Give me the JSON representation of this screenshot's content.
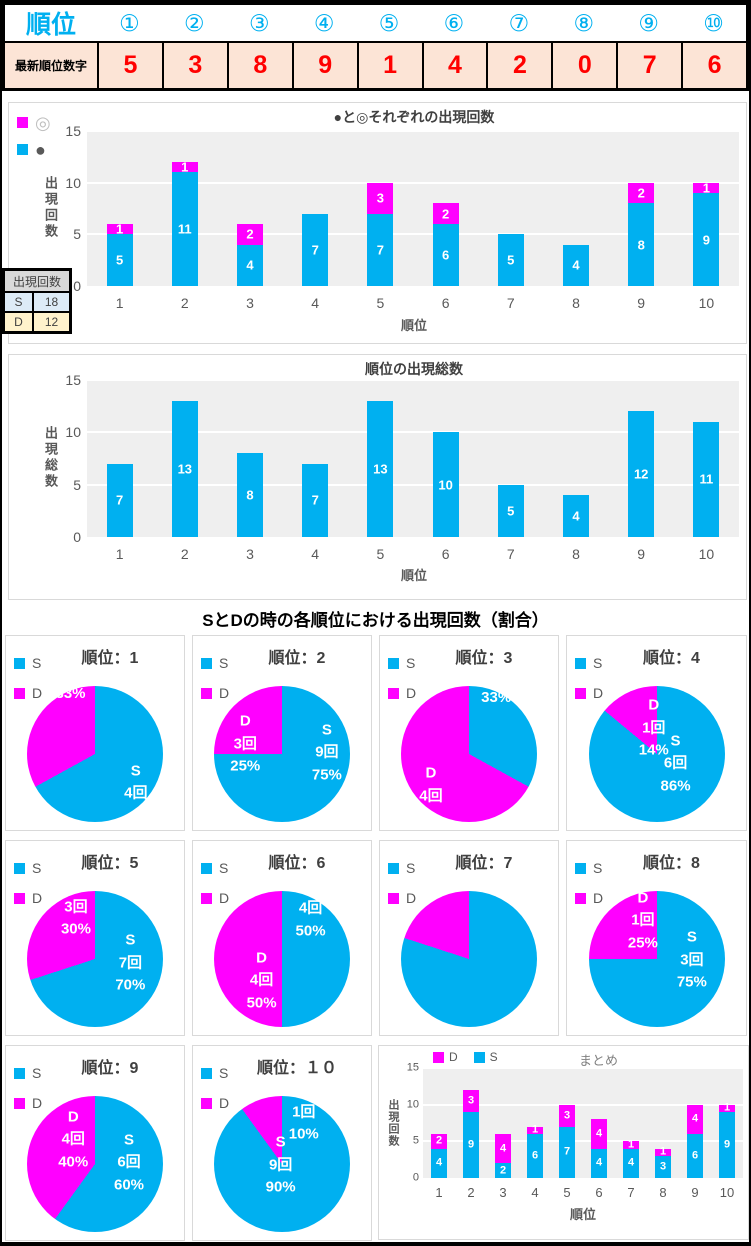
{
  "colors": {
    "accent_cyan": "#00B0F0",
    "accent_magenta": "#FF00FF",
    "value_red": "#FF0000",
    "table_bg_pink": "#FCE4D6",
    "s_row_bg": "#DDEBF7",
    "d_row_bg": "#FFF2CC",
    "header_gray": "#D9D9D9",
    "plot_bg": "#EFEFEF"
  },
  "top_table": {
    "header_label": "順位",
    "rank_symbols": [
      "①",
      "②",
      "③",
      "④",
      "⑤",
      "⑥",
      "⑦",
      "⑧",
      "⑨",
      "⑩"
    ],
    "row_label": "最新順位数字",
    "values": [
      "5",
      "3",
      "8",
      "9",
      "1",
      "4",
      "2",
      "0",
      "7",
      "6"
    ]
  },
  "counts_table": {
    "header": "出現回数",
    "rows": [
      {
        "label": "S",
        "value": "18"
      },
      {
        "label": "D",
        "value": "12"
      }
    ]
  },
  "section": {
    "title": "SとDの時の各順位における出現回数（割合）"
  },
  "chart_data": [
    {
      "type": "bar",
      "title": "●と◎それぞれの出現回数",
      "xlabel": "順位",
      "ylabel": "出現回数",
      "ylim": [
        0,
        15
      ],
      "yticks": [
        0,
        5,
        10,
        15
      ],
      "grid": true,
      "legend_position": "top-left",
      "categories": [
        "1",
        "2",
        "3",
        "4",
        "5",
        "6",
        "7",
        "8",
        "9",
        "10"
      ],
      "series": [
        {
          "name": "●",
          "color": "#00B0F0",
          "values": [
            5,
            11,
            4,
            7,
            7,
            6,
            5,
            4,
            8,
            9
          ]
        },
        {
          "name": "◎",
          "color": "#FF00FF",
          "values": [
            1,
            1,
            2,
            0,
            3,
            2,
            0,
            0,
            2,
            1
          ]
        }
      ],
      "legend": [
        {
          "label": "◎",
          "swatch": "#FF00FF"
        },
        {
          "label": "●",
          "swatch": "#00B0F0"
        }
      ]
    },
    {
      "type": "bar",
      "title": "順位の出現総数",
      "xlabel": "順位",
      "ylabel": "出現総数",
      "ylim": [
        0,
        15
      ],
      "yticks": [
        0,
        5,
        10,
        15
      ],
      "grid": true,
      "categories": [
        "1",
        "2",
        "3",
        "4",
        "5",
        "6",
        "7",
        "8",
        "9",
        "10"
      ],
      "series": [
        {
          "name": "出現総数",
          "color": "#00B0F0",
          "values": [
            7,
            13,
            8,
            7,
            13,
            10,
            5,
            4,
            12,
            11
          ]
        }
      ]
    },
    {
      "type": "pie",
      "title": "順位：1",
      "legend": [
        {
          "label": "S",
          "swatch": "#00B0F0"
        },
        {
          "label": "D",
          "swatch": "#FF00FF"
        }
      ],
      "slices": [
        {
          "name": "S",
          "color": "#00B0F0",
          "pct": 67
        },
        {
          "name": "D",
          "color": "#FF00FF",
          "pct": 33
        }
      ],
      "labels": [
        {
          "text": "33%",
          "x": 32,
          "y": 6
        },
        {
          "text": "S\n4回",
          "x": 80,
          "y": 71
        }
      ]
    },
    {
      "type": "pie",
      "title": "順位：2",
      "legend": [
        {
          "label": "S",
          "swatch": "#00B0F0"
        },
        {
          "label": "D",
          "swatch": "#FF00FF"
        }
      ],
      "slices": [
        {
          "name": "S",
          "color": "#00B0F0",
          "pct": 75
        },
        {
          "name": "D",
          "color": "#FF00FF",
          "pct": 25
        }
      ],
      "labels": [
        {
          "text": "D\n3回\n25%",
          "x": 23,
          "y": 43
        },
        {
          "text": "S\n9回\n75%",
          "x": 83,
          "y": 49
        }
      ]
    },
    {
      "type": "pie",
      "title": "順位：3",
      "legend": [
        {
          "label": "S",
          "swatch": "#00B0F0"
        },
        {
          "label": "D",
          "swatch": "#FF00FF"
        }
      ],
      "slices": [
        {
          "name": "S",
          "color": "#00B0F0",
          "pct": 33
        },
        {
          "name": "D",
          "color": "#FF00FF",
          "pct": 67
        }
      ],
      "labels": [
        {
          "text": "33%",
          "x": 70,
          "y": 9
        },
        {
          "text": "D\n4回",
          "x": 22,
          "y": 73
        }
      ]
    },
    {
      "type": "pie",
      "title": "順位：4",
      "legend": [
        {
          "label": "S",
          "swatch": "#00B0F0"
        },
        {
          "label": "D",
          "swatch": "#FF00FF"
        }
      ],
      "slices": [
        {
          "name": "S",
          "color": "#00B0F0",
          "pct": 86
        },
        {
          "name": "D",
          "color": "#FF00FF",
          "pct": 14
        }
      ],
      "labels": [
        {
          "text": "D\n1回\n14%",
          "x": 48,
          "y": 31
        },
        {
          "text": "S\n6回\n86%",
          "x": 64,
          "y": 57
        }
      ]
    },
    {
      "type": "pie",
      "title": "順位：5",
      "legend": [
        {
          "label": "S",
          "swatch": "#00B0F0"
        },
        {
          "label": "D",
          "swatch": "#FF00FF"
        }
      ],
      "slices": [
        {
          "name": "S",
          "color": "#00B0F0",
          "pct": 70
        },
        {
          "name": "D",
          "color": "#FF00FF",
          "pct": 30
        }
      ],
      "labels": [
        {
          "text": "D\n3回\n30%",
          "x": 36,
          "y": 12
        },
        {
          "text": "S\n7回\n70%",
          "x": 76,
          "y": 53
        }
      ]
    },
    {
      "type": "pie",
      "title": "順位：6",
      "legend": [
        {
          "label": "S",
          "swatch": "#00B0F0"
        },
        {
          "label": "D",
          "swatch": "#FF00FF"
        }
      ],
      "slices": [
        {
          "name": "S",
          "color": "#00B0F0",
          "pct": 50
        },
        {
          "name": "D",
          "color": "#FF00FF",
          "pct": 50
        }
      ],
      "labels": [
        {
          "text": "S\n4回\n50%",
          "x": 71,
          "y": 13
        },
        {
          "text": "D\n4回\n50%",
          "x": 35,
          "y": 66
        }
      ]
    },
    {
      "type": "pie",
      "title": "順位：7",
      "legend": [
        {
          "label": "S",
          "swatch": "#00B0F0"
        },
        {
          "label": "D",
          "swatch": "#FF00FF"
        }
      ],
      "slices": [
        {
          "name": "S",
          "color": "#00B0F0",
          "pct": 80
        },
        {
          "name": "D",
          "color": "#FF00FF",
          "pct": 20
        }
      ],
      "labels": []
    },
    {
      "type": "pie",
      "title": "順位：8",
      "legend": [
        {
          "label": "S",
          "swatch": "#00B0F0"
        },
        {
          "label": "D",
          "swatch": "#FF00FF"
        }
      ],
      "slices": [
        {
          "name": "S",
          "color": "#00B0F0",
          "pct": 75
        },
        {
          "name": "D",
          "color": "#FF00FF",
          "pct": 25
        }
      ],
      "labels": [
        {
          "text": "D\n1回\n25%",
          "x": 40,
          "y": 22
        },
        {
          "text": "S\n3回\n75%",
          "x": 76,
          "y": 51
        }
      ]
    },
    {
      "type": "pie",
      "title": "順位：9",
      "legend": [
        {
          "label": "S",
          "swatch": "#00B0F0"
        },
        {
          "label": "D",
          "swatch": "#FF00FF"
        }
      ],
      "slices": [
        {
          "name": "S",
          "color": "#00B0F0",
          "pct": 60
        },
        {
          "name": "D",
          "color": "#FF00FF",
          "pct": 40
        }
      ],
      "labels": [
        {
          "text": "D\n4回\n40%",
          "x": 34,
          "y": 32
        },
        {
          "text": "S\n6回\n60%",
          "x": 75,
          "y": 49
        }
      ]
    },
    {
      "type": "pie",
      "title": "順位：１０",
      "legend": [
        {
          "label": "S",
          "swatch": "#00B0F0"
        },
        {
          "label": "D",
          "swatch": "#FF00FF"
        }
      ],
      "slices": [
        {
          "name": "S",
          "color": "#00B0F0",
          "pct": 90
        },
        {
          "name": "D",
          "color": "#FF00FF",
          "pct": 10
        }
      ],
      "labels": [
        {
          "text": "D\n1回\n10%",
          "x": 66,
          "y": 12
        },
        {
          "text": "S\n9回\n90%",
          "x": 49,
          "y": 51
        }
      ]
    },
    {
      "type": "bar",
      "title": "まとめ",
      "xlabel": "順位",
      "ylabel": "出現回数",
      "ylim": [
        0,
        15
      ],
      "yticks": [
        0,
        5,
        10,
        15
      ],
      "grid": true,
      "legend_position": "top",
      "categories": [
        "1",
        "2",
        "3",
        "4",
        "5",
        "6",
        "7",
        "8",
        "9",
        "10"
      ],
      "series": [
        {
          "name": "S",
          "color": "#00B0F0",
          "values": [
            4,
            9,
            2,
            6,
            7,
            4,
            4,
            3,
            6,
            9
          ]
        },
        {
          "name": "D",
          "color": "#FF00FF",
          "values": [
            2,
            3,
            4,
            1,
            3,
            4,
            1,
            1,
            4,
            1
          ]
        }
      ],
      "legend": [
        {
          "label": "D",
          "swatch": "#FF00FF"
        },
        {
          "label": "S",
          "swatch": "#00B0F0"
        }
      ]
    }
  ]
}
